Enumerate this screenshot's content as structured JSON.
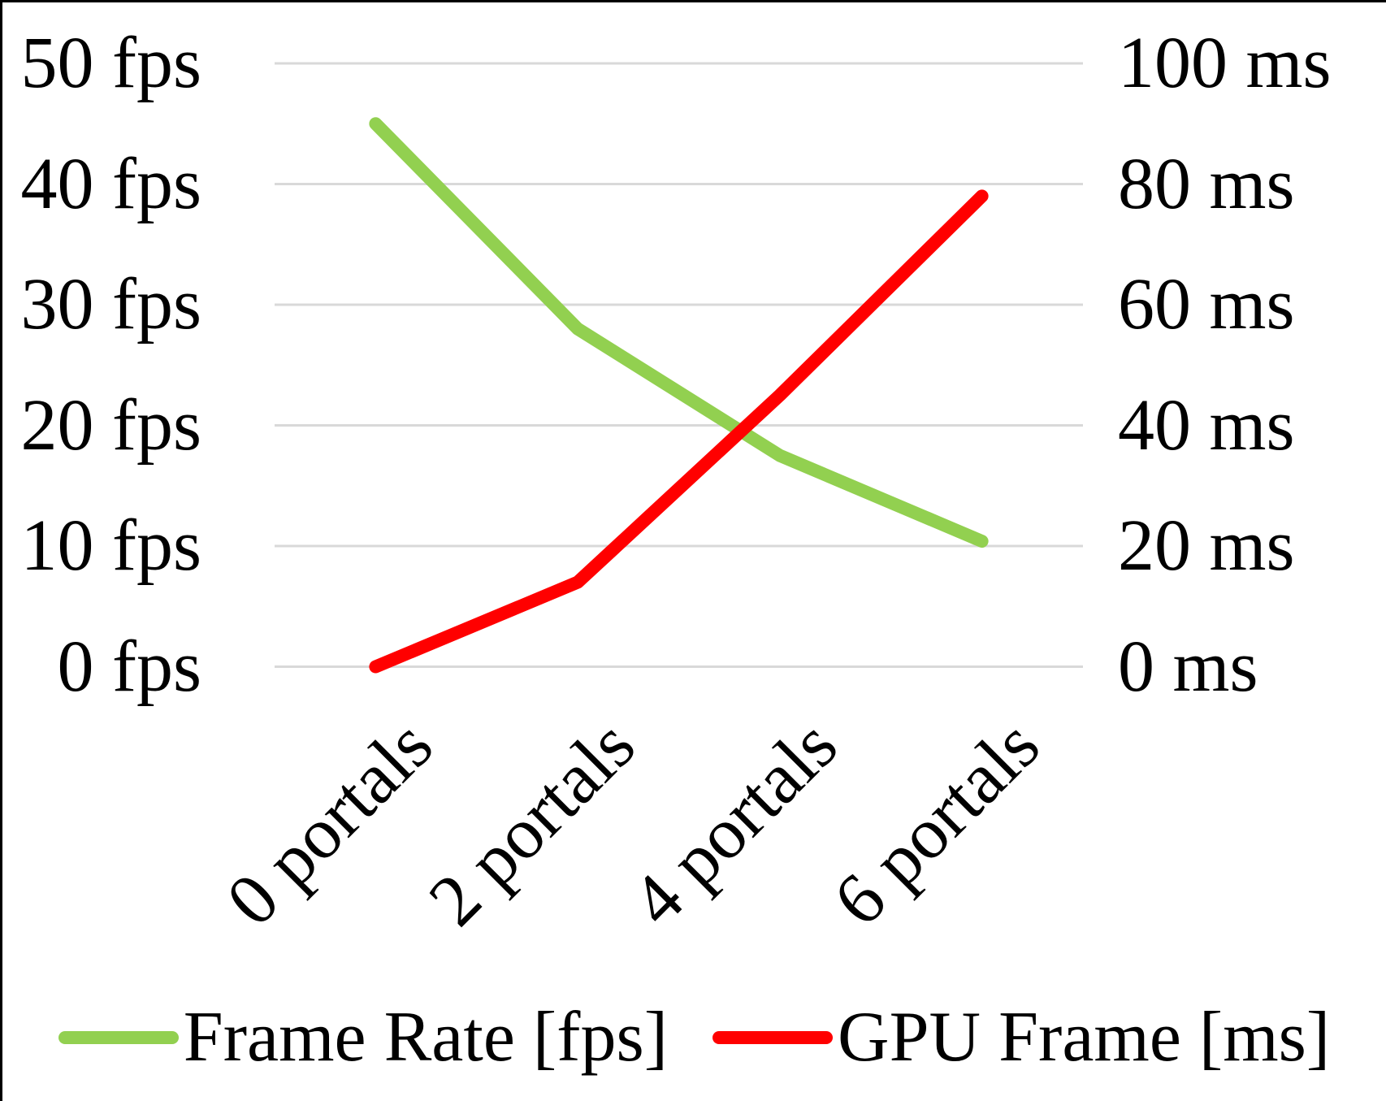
{
  "chart_data": {
    "type": "line",
    "categories": [
      "0 portals",
      "2 portals",
      "4 portals",
      "6 portals"
    ],
    "series": [
      {
        "name": "Frame Rate [fps]",
        "axis": "left",
        "color": "#92D050",
        "values": [
          45,
          28,
          17.5,
          10.4
        ]
      },
      {
        "name": "GPU Frame [ms]",
        "axis": "right",
        "color": "#FF0000",
        "values": [
          0,
          14,
          45,
          78
        ]
      }
    ],
    "left_axis": {
      "min": 0,
      "max": 50,
      "tick_step": 10,
      "tick_labels": [
        "0 fps",
        "10 fps",
        "20 fps",
        "30 fps",
        "40 fps",
        "50 fps"
      ]
    },
    "right_axis": {
      "min": 0,
      "max": 100,
      "tick_step": 20,
      "tick_labels": [
        "0 ms",
        "20 ms",
        "40 ms",
        "60 ms",
        "80 ms",
        "100 ms"
      ]
    },
    "grid": {
      "visible": true,
      "color": "#D9D9D9"
    },
    "legend_position": "bottom",
    "title": ""
  }
}
